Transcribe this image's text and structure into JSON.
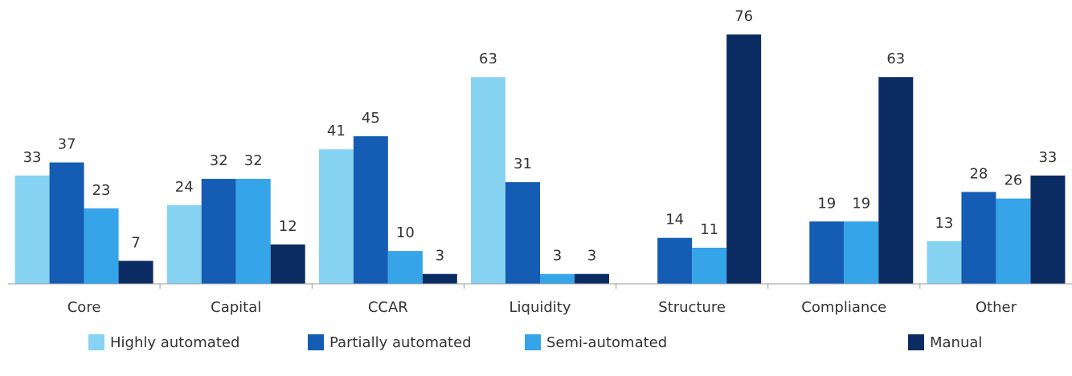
{
  "chart_data": {
    "type": "bar",
    "categories": [
      "Core",
      "Capital",
      "CCAR",
      "Liquidity",
      "Structure",
      "Compliance",
      "Other"
    ],
    "series": [
      {
        "name": "Highly automated",
        "color": "#87d3f2",
        "values": [
          33,
          24,
          41,
          63,
          null,
          null,
          13
        ]
      },
      {
        "name": "Partially automated",
        "color": "#155cb4",
        "values": [
          37,
          32,
          45,
          31,
          14,
          19,
          28
        ]
      },
      {
        "name": "Semi-automated",
        "color": "#36a4e8",
        "values": [
          23,
          32,
          10,
          3,
          11,
          19,
          26
        ]
      },
      {
        "name": "Manual",
        "color": "#0b2c63",
        "values": [
          7,
          12,
          3,
          3,
          76,
          63,
          33
        ]
      }
    ],
    "ylim": [
      0,
      80
    ],
    "legend": "bottom"
  }
}
